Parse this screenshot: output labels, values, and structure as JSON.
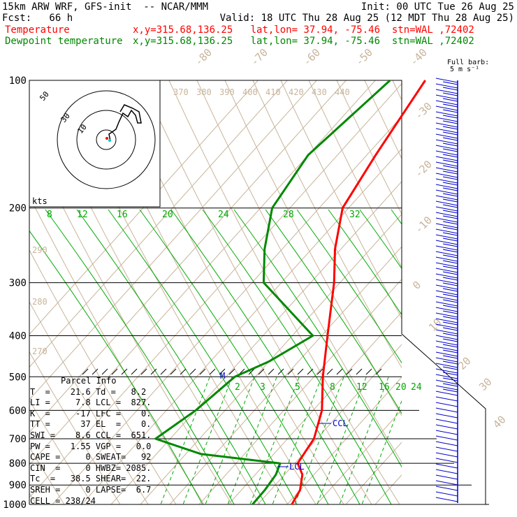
{
  "header": {
    "model": "15km ARW WRF, GFS-init  -- NCAR/MMM",
    "init": "Init: 00 UTC Tue 26 Aug 25",
    "fcst": "Fcst:   66 h",
    "valid": "Valid: 18 UTC Thu 28 Aug 25 (12 MDT Thu 28 Aug 25)",
    "temp_label": "Temperature",
    "temp_info": "x,y=315.68,136.25   lat,lon= 37.94, -75.46  stn=WAL ,72402",
    "dew_label": "Dewpoint temperature",
    "dew_info": "x,y=315.68,136.25   lat,lon= 37.94, -75.46  stn=WAL ,72402",
    "full_barb": "Full barb:",
    "barb_unit": "5 m s⁻¹"
  },
  "colors": {
    "temperature": "#ff0000",
    "dewpoint": "#008800",
    "isotherm": "#c8b49a",
    "mixing": "#00aa00",
    "wind": "#0000cc"
  },
  "chart_data": {
    "type": "skewt",
    "pressure_levels": [
      100,
      200,
      300,
      400,
      500,
      600,
      700,
      800,
      900,
      1000
    ],
    "temperature_profile": [
      {
        "p": 100,
        "t": -63
      },
      {
        "p": 150,
        "t": -57
      },
      {
        "p": 200,
        "t": -52
      },
      {
        "p": 250,
        "t": -42
      },
      {
        "p": 300,
        "t": -32
      },
      {
        "p": 400,
        "t": -18
      },
      {
        "p": 500,
        "t": -7
      },
      {
        "p": 600,
        "t": 3
      },
      {
        "p": 700,
        "t": 9
      },
      {
        "p": 750,
        "t": 10
      },
      {
        "p": 800,
        "t": 11
      },
      {
        "p": 850,
        "t": 16
      },
      {
        "p": 925,
        "t": 20
      },
      {
        "p": 1000,
        "t": 21.6
      }
    ],
    "dewpoint_profile": [
      {
        "p": 100,
        "t": -75
      },
      {
        "p": 150,
        "t": -80
      },
      {
        "p": 200,
        "t": -76
      },
      {
        "p": 250,
        "t": -66
      },
      {
        "p": 300,
        "t": -56
      },
      {
        "p": 400,
        "t": -23
      },
      {
        "p": 460,
        "t": -30
      },
      {
        "p": 500,
        "t": -37
      },
      {
        "p": 600,
        "t": -40
      },
      {
        "p": 700,
        "t": -45
      },
      {
        "p": 760,
        "t": -25
      },
      {
        "p": 800,
        "t": 5
      },
      {
        "p": 850,
        "t": 7
      },
      {
        "p": 925,
        "t": 8
      },
      {
        "p": 1000,
        "t": 8.2
      }
    ],
    "isotherm_labels": [
      "-80",
      "-70",
      "-60",
      "-50",
      "-40",
      "-30",
      "-20",
      "-10",
      "0",
      "10",
      "20",
      "30",
      "40"
    ],
    "theta_labels": [
      "370",
      "380",
      "390",
      "400",
      "410",
      "420",
      "430",
      "440"
    ],
    "theta_side_labels": [
      "290",
      "280",
      "270"
    ],
    "mixing_labels_upper": [
      "8",
      "12",
      "16",
      "20",
      "24",
      "28",
      "32"
    ],
    "mixing_labels_lower": [
      "2",
      "3",
      "5",
      "8",
      "12",
      "16",
      "20",
      "24"
    ],
    "hodograph": {
      "rings": [
        "10",
        "30",
        "50"
      ],
      "unit": "kts"
    },
    "annotations": [
      "CCL",
      "LCL",
      "M"
    ]
  },
  "parcel": {
    "title": "Parcel Info",
    "rows": [
      "T  =    21.6 Td =   8.2",
      "LI =     7.8 LCL =  827.",
      "K  =     -17 LFC =    0.",
      "TT =      37 EL  =    0.",
      "SWI =    8.6 CCL =  651.",
      "PW =    1.55 VGP =   0.0",
      "CAPE =     0 SWEAT=   92",
      "CIN  =     0 HWBZ= 2085.",
      "Tc  =   38.5 SHEAR=  22.",
      "SREH =     0 LAPSE=  6.7",
      "CELL = 238/24"
    ]
  }
}
